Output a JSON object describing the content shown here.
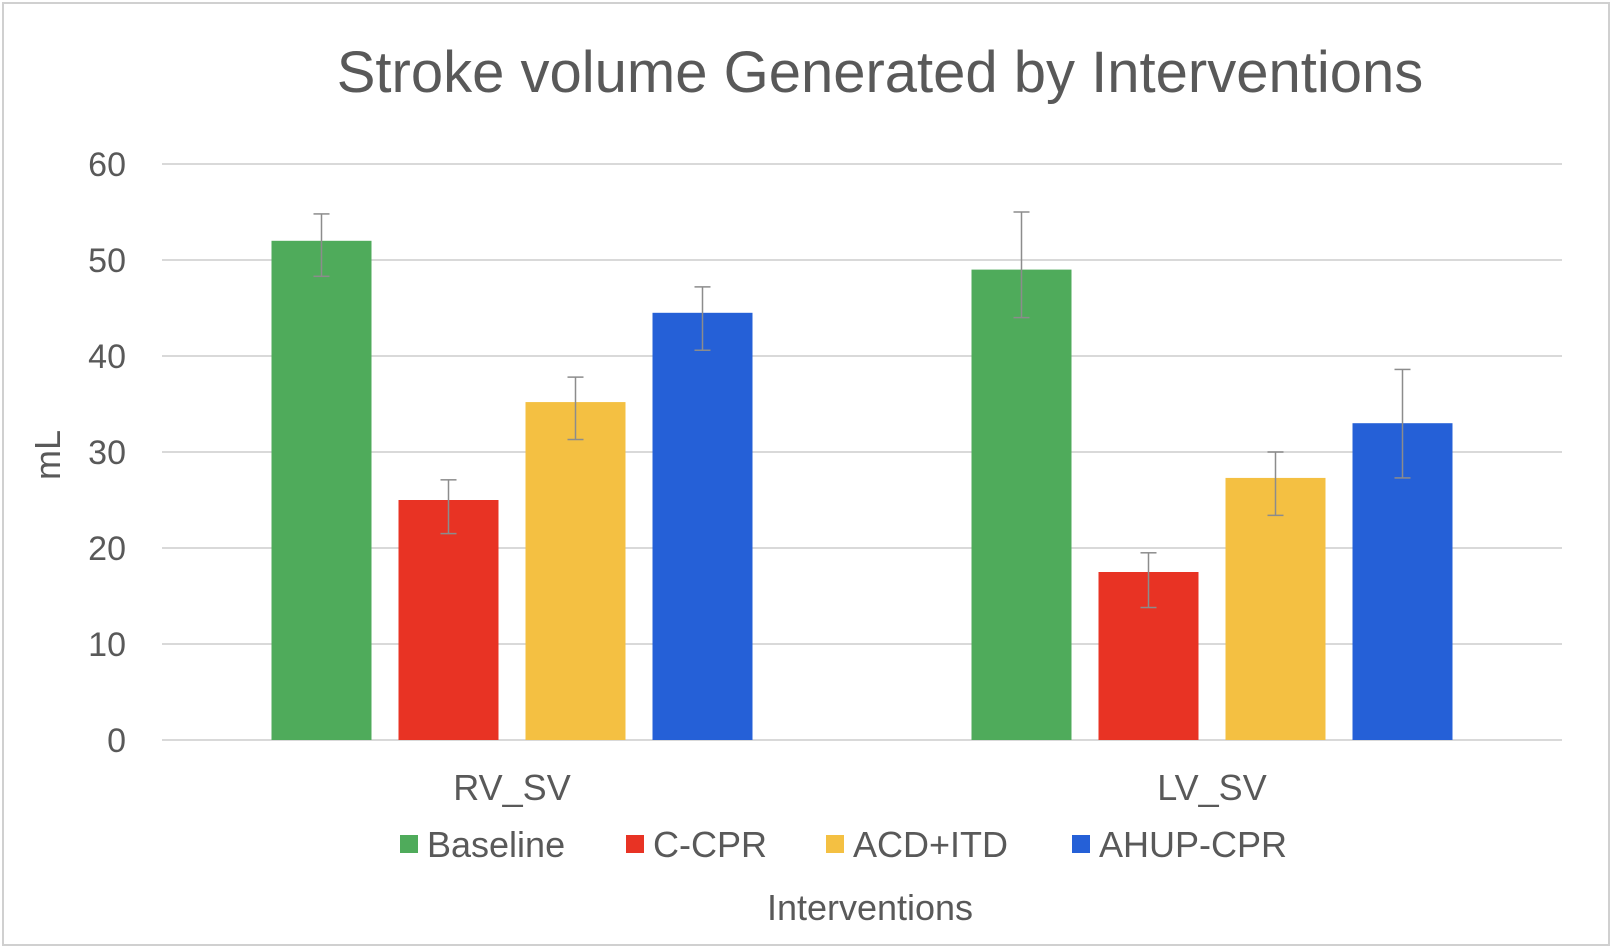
{
  "chart_data": {
    "type": "bar",
    "title": "Stroke volume Generated by Interventions",
    "xlabel": "Interventions",
    "ylabel": "mL",
    "ylim": [
      0,
      60
    ],
    "yticks": [
      0,
      10,
      20,
      30,
      40,
      50,
      60
    ],
    "grid": true,
    "legend_position": "bottom",
    "categories": [
      "RV_SV",
      "LV_SV"
    ],
    "series": [
      {
        "name": "Baseline",
        "color": "#4fab5b",
        "values": [
          52,
          49
        ],
        "error_low": [
          48.3,
          44
        ],
        "error_high": [
          54.8,
          55
        ]
      },
      {
        "name": "C-CPR",
        "color": "#e83324",
        "values": [
          25,
          17.5
        ],
        "error_low": [
          21.5,
          13.8
        ],
        "error_high": [
          27.1,
          19.5
        ]
      },
      {
        "name": "ACD+ITD",
        "color": "#f4c042",
        "values": [
          35.2,
          27.3
        ],
        "error_low": [
          31.3,
          23.4
        ],
        "error_high": [
          37.8,
          30
        ]
      },
      {
        "name": "AHUP-CPR",
        "color": "#2560d7",
        "values": [
          44.5,
          33
        ],
        "error_low": [
          40.6,
          27.3
        ],
        "error_high": [
          47.2,
          38.6
        ]
      }
    ]
  }
}
